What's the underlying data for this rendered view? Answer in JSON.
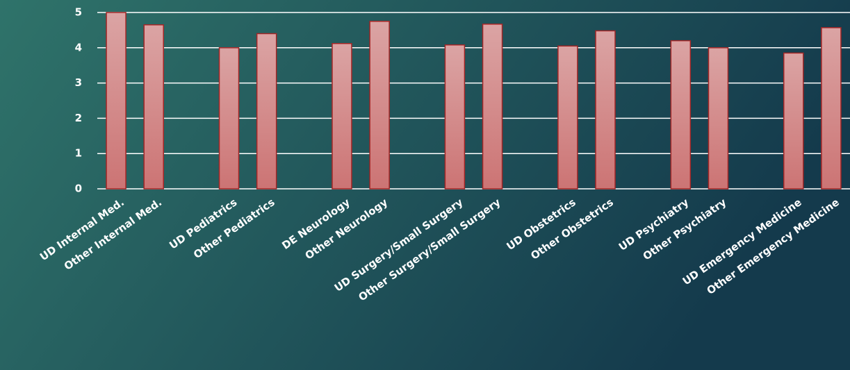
{
  "chart_data": {
    "type": "bar",
    "categories": [
      "UD Internal Med.",
      "Other Internal Med.",
      null,
      "UD Pediatrics",
      "Other Pediatrics",
      null,
      "DE Neurology",
      "Other Neurology",
      null,
      "UD Surgery/Small Surgery",
      "Other Surgery/Small Surgery",
      null,
      "UD Obstetrics",
      "Other Obstetrics",
      null,
      "UD Psychiatry",
      "Other Psychiatry",
      null,
      "UD Emergency Medicine",
      "Other Emergency Medicine"
    ],
    "values": [
      5,
      4.65,
      null,
      4.0,
      4.4,
      null,
      4.12,
      4.75,
      null,
      4.08,
      4.67,
      null,
      4.05,
      4.48,
      null,
      4.2,
      4.0,
      null,
      3.85,
      4.57
    ],
    "color": "#d48a8a",
    "ylim": [
      0,
      5
    ],
    "yticks": [
      0,
      1,
      2,
      3,
      4,
      5
    ],
    "grid": true
  }
}
